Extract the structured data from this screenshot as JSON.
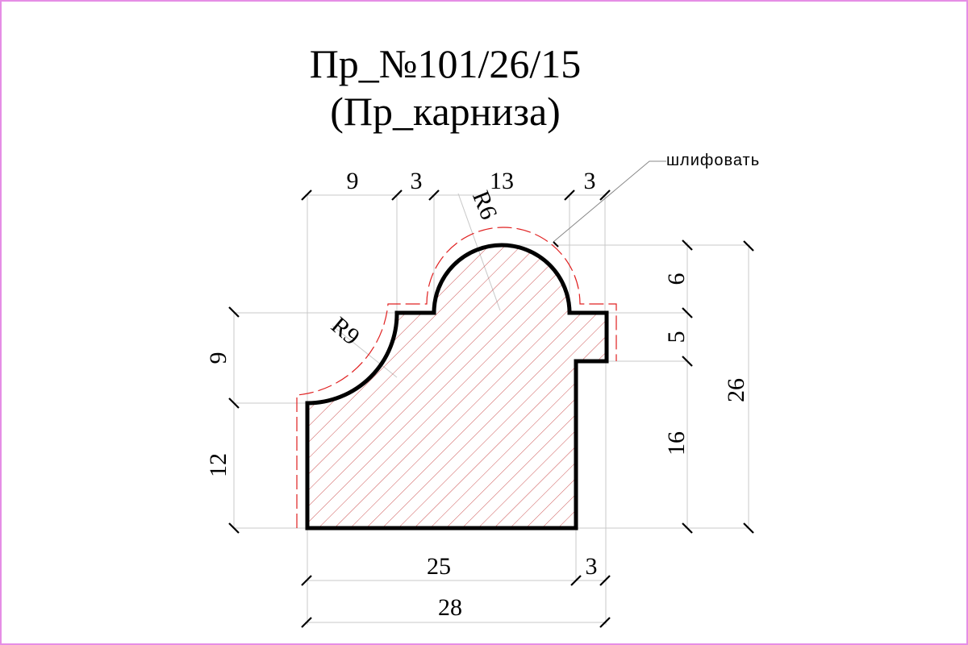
{
  "title": {
    "line1": "Пр_№101/26/15",
    "line2": "(Пр_карниза)"
  },
  "annotation": {
    "sanding_note": "шлифовать"
  },
  "dimensions": {
    "top_9": "9",
    "top_3a": "3",
    "top_13": "13",
    "top_3b": "3",
    "radius_6": "R6",
    "radius_9": "R9",
    "left_9": "9",
    "left_12": "12",
    "right_6": "6",
    "right_5": "5",
    "right_16": "16",
    "right_26": "26",
    "bottom_25": "25",
    "bottom_3": "3",
    "bottom_28": "28"
  },
  "colors": {
    "border": "#e58ee5",
    "outline": "#000000",
    "hatch": "#c84040",
    "sanding_line": "#e02020",
    "dim_line": "#c8c8c8"
  }
}
